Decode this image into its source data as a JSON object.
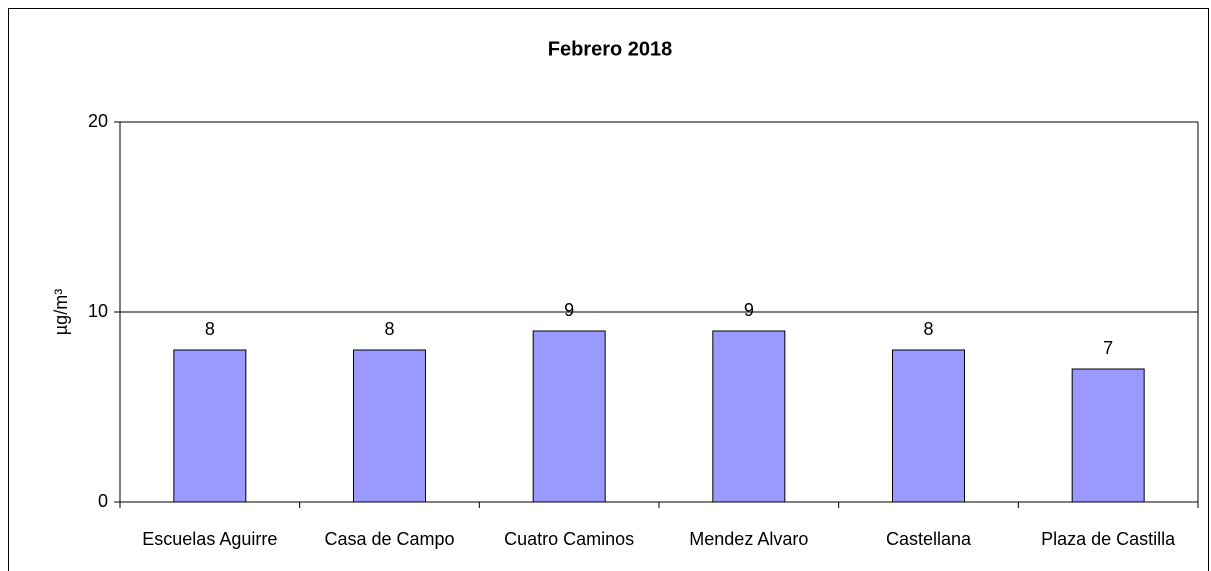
{
  "chart_data": {
    "type": "bar",
    "title": "Febrero 2018",
    "y_label": "µg/m³",
    "categories": [
      "Escuelas Aguirre",
      "Casa de Campo",
      "Cuatro Caminos",
      "Mendez Alvaro",
      "Castellana",
      "Plaza de Castilla"
    ],
    "values": [
      8,
      8,
      9,
      9,
      8,
      7
    ],
    "color": "#9999ff",
    "ylim": [
      0,
      20
    ],
    "yticks": [
      0,
      10,
      20
    ],
    "grid": true
  }
}
